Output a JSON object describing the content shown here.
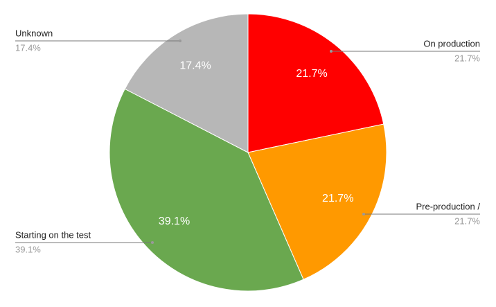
{
  "chart_data": {
    "type": "pie",
    "categories": [
      "On production",
      "Pre-production /",
      "Starting on the test",
      "Unknown"
    ],
    "values": [
      21.7,
      21.7,
      39.1,
      17.4
    ],
    "value_labels": [
      "21.7%",
      "21.7%",
      "39.1%",
      "17.4%"
    ],
    "colors": [
      "#ff0000",
      "#ff9900",
      "#6aa84f",
      "#b7b7b7"
    ]
  }
}
